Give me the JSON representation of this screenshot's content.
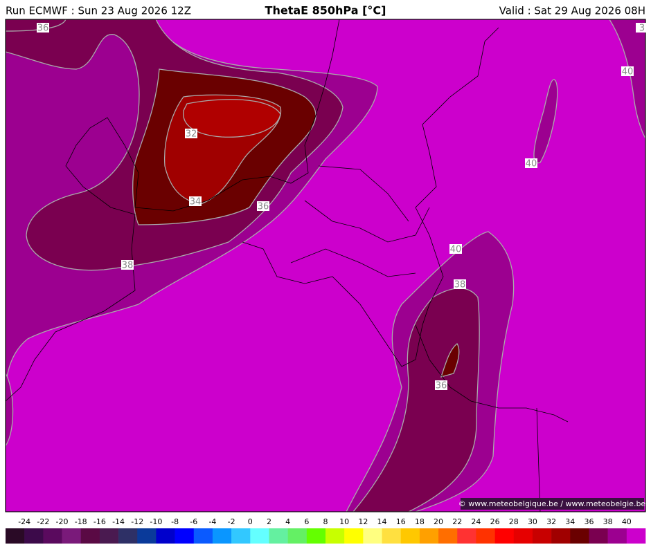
{
  "header": {
    "left": "Run ECMWF : Sun 23 Aug 2026 12Z",
    "title": "ThetaE 850hPa [°C]",
    "right": "Valid : Sat 29 Aug 2026 08H"
  },
  "contour_labels": [
    36,
    32,
    34,
    36,
    38,
    40,
    38,
    36,
    40,
    40,
    3
  ],
  "copyright": "© www.meteobelgique.be / www.meteobelgie.be",
  "colorbar": {
    "ticks": [
      -24,
      -22,
      -20,
      -18,
      -16,
      -14,
      -12,
      -10,
      -8,
      -6,
      -4,
      -2,
      0,
      2,
      4,
      6,
      8,
      10,
      12,
      14,
      16,
      18,
      20,
      22,
      24,
      26,
      28,
      30,
      32,
      34,
      36,
      38,
      40
    ],
    "colors": [
      "#2a0a26",
      "#3c0a4a",
      "#5a0a5e",
      "#7a1a7a",
      "#5a0a44",
      "#4a1a50",
      "#2e3066",
      "#0a3a9a",
      "#0000cc",
      "#0000ff",
      "#0a5aff",
      "#0a96ff",
      "#32c8ff",
      "#64ffff",
      "#64f0a0",
      "#64f064",
      "#64ff00",
      "#c8ff00",
      "#ffff00",
      "#ffff80",
      "#ffe040",
      "#ffc800",
      "#ffa000",
      "#ff6e00",
      "#ff3232",
      "#ff3200",
      "#ff0000",
      "#e60000",
      "#c80000",
      "#a00000",
      "#6a0000",
      "#7a0050",
      "#9c0090",
      "#cc00cc"
    ]
  }
}
